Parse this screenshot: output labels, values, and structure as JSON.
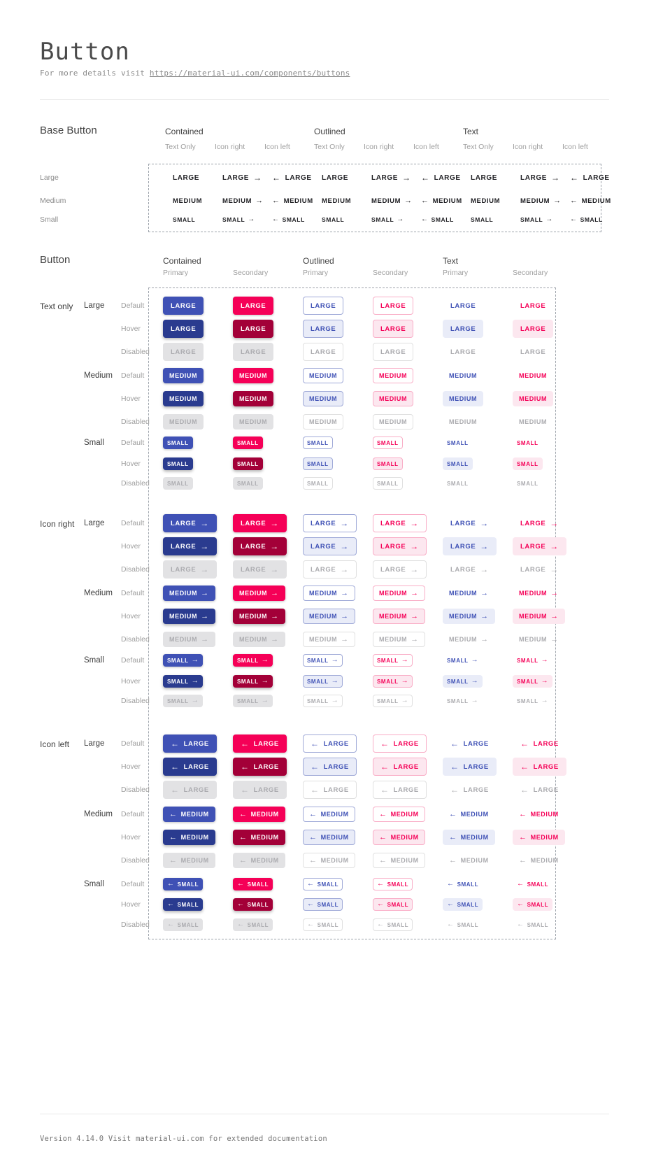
{
  "page": {
    "title": "Button",
    "subtitle_prefix": "For more details visit ",
    "subtitle_link": "https://material-ui.com/components/buttons",
    "footer": "Version 4.14.0  Visit material-ui.com for extended documentation"
  },
  "colors": {
    "primary": "#3f51b5",
    "primary_hover": "#2a3b8f",
    "secondary": "#f50057",
    "secondary_hover": "#a30038",
    "primary_tint": "#e9ecf8",
    "secondary_tint": "#fce7ef",
    "primary_border": "#a0aad8",
    "secondary_border": "#f9aec7",
    "disabled_bg": "#e2e2e4",
    "disabled_text": "#ababaf",
    "disabled_border": "#e0e0e0",
    "base_text": "#1f1f23"
  },
  "icons": {
    "arrow_right": "→",
    "arrow_left": "←"
  },
  "base_section": {
    "heading": "Base Button",
    "group_headers": [
      "Contained",
      "Outlined",
      "Text"
    ],
    "subcolumns": [
      "Text Only",
      "Icon right",
      "Icon left"
    ],
    "size_rows": [
      {
        "label": "Large",
        "button_text": "LARGE"
      },
      {
        "label": "Medium",
        "button_text": "MEDIUM"
      },
      {
        "label": "Small",
        "button_text": "SMALL"
      }
    ]
  },
  "button_section": {
    "heading": "Button",
    "group_headers": [
      "Contained",
      "Outlined",
      "Text"
    ],
    "subcolumns": [
      "Primary",
      "Secondary"
    ],
    "row_groups": [
      "Text only",
      "Icon right",
      "Icon left"
    ],
    "sizes": [
      {
        "label": "Large",
        "button_text": "LARGE"
      },
      {
        "label": "Medium",
        "button_text": "MEDIUM"
      },
      {
        "label": "Small",
        "button_text": "SMALL"
      }
    ],
    "states": [
      "Default",
      "Hover",
      "Disabled"
    ]
  }
}
